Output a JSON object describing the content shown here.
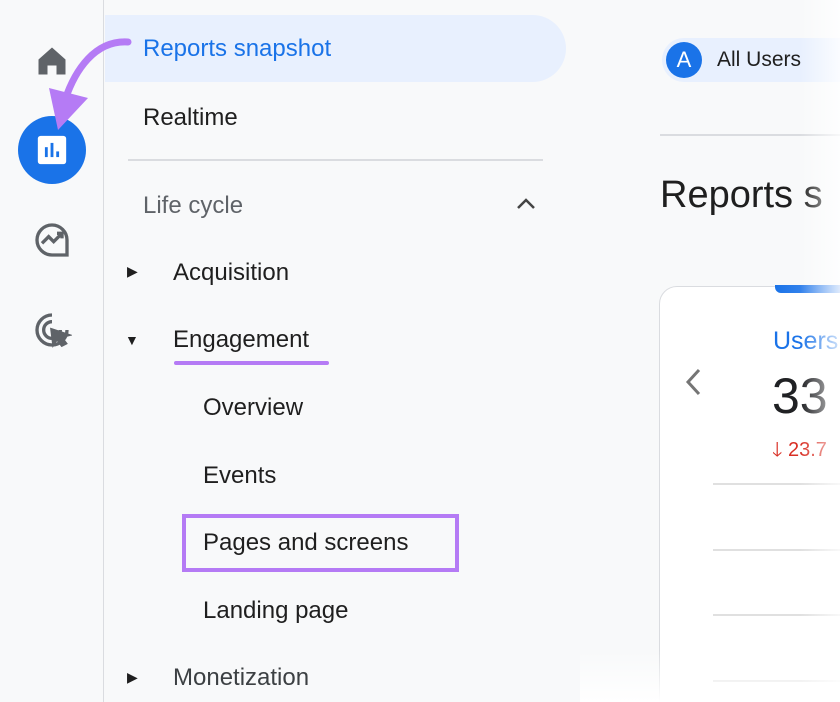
{
  "rail": {
    "icons": [
      "home-icon",
      "reports-icon",
      "explore-icon",
      "advertising-icon"
    ],
    "active": "reports-icon",
    "active_color": "#1a73e8"
  },
  "nav": {
    "reports_snapshot": "Reports snapshot",
    "realtime": "Realtime",
    "section": "Life cycle",
    "items": [
      {
        "label": "Acquisition",
        "expanded": false
      },
      {
        "label": "Engagement",
        "expanded": true,
        "children": [
          "Overview",
          "Events",
          "Pages and screens",
          "Landing page"
        ]
      },
      {
        "label": "Monetization",
        "expanded": false
      }
    ]
  },
  "main": {
    "segment_letter": "A",
    "segment": "All Users",
    "title": "Reports s",
    "card": {
      "metric": "Users",
      "value": "33",
      "change": "23.7",
      "change_direction": "down",
      "change_color": "#d93025"
    }
  },
  "annotations": {
    "color": "#b57bf5"
  }
}
